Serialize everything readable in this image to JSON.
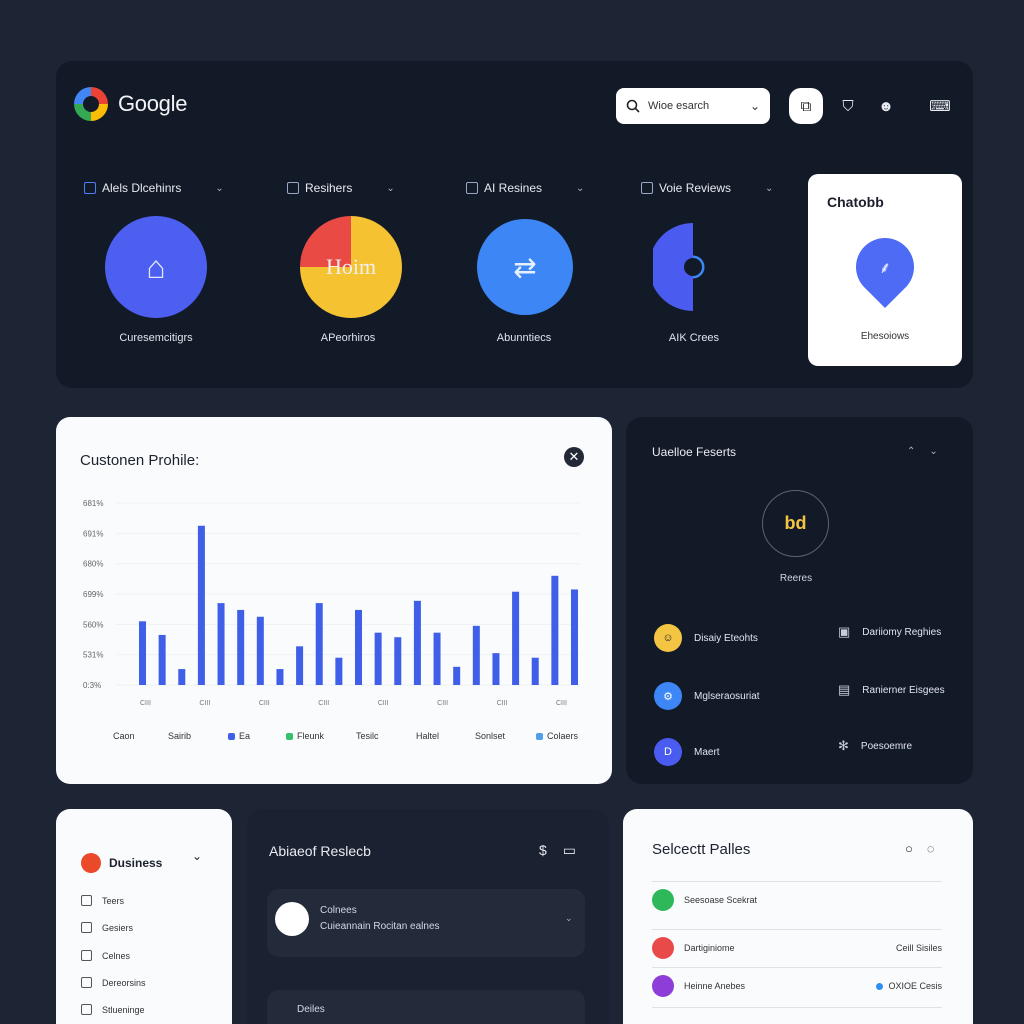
{
  "header": {
    "logo_text": "Google",
    "search_placeholder": "Wioe esarch",
    "icons": [
      "copy-icon",
      "shield-icon",
      "mask-icon",
      "inbox-icon"
    ]
  },
  "categories": [
    {
      "label": "Alels Dlcehinrs",
      "caption": "Curesemcitigrs",
      "color": "#4d5ff0",
      "glyph": "⌂"
    },
    {
      "label": "Resihers",
      "caption": "APeorhiros",
      "color": "#f5c332",
      "glyph": "Hoim"
    },
    {
      "label": "AI Resines",
      "caption": "Abunntiecs",
      "color": "#3d86f5",
      "glyph": "⇄"
    },
    {
      "label": "Voie Reviews",
      "caption": "AIK Crees",
      "color": "#4a5cf0",
      "glyph": "≯"
    }
  ],
  "chatbot": {
    "title": "Chatobb",
    "caption": "Ehesoiows"
  },
  "profile": {
    "title": "Custonen Prohile:"
  },
  "chart_data": {
    "type": "bar",
    "y_tick_labels": [
      "0:3%",
      "531%",
      "560%",
      "699%",
      "680%",
      "691%",
      "681%"
    ],
    "x_tick_labels": [
      "CIII",
      "CIII",
      "CIII",
      "CIII",
      "CIII",
      "CIII",
      "CIII",
      "CIII"
    ],
    "values": [
      28,
      22,
      7,
      70,
      36,
      33,
      30,
      7,
      17,
      36,
      12,
      33,
      23,
      21,
      37,
      23,
      8,
      26,
      14,
      41,
      12,
      48,
      42
    ],
    "legend": [
      {
        "label": "Caon",
        "color": ""
      },
      {
        "label": "Sairib",
        "color": ""
      },
      {
        "label": "Ea",
        "color": "#3f5fe8"
      },
      {
        "label": "Fleunk",
        "color": "#33c26a"
      },
      {
        "label": "Tesilc",
        "color": ""
      },
      {
        "label": "Haltel",
        "color": ""
      },
      {
        "label": "Sonlset",
        "color": ""
      },
      {
        "label": "Colaers",
        "color": "#4ea0ea"
      }
    ]
  },
  "variance": {
    "title": "Uaelloe Feserts",
    "badge": "bd",
    "badge_label": "Reeres",
    "items": [
      {
        "label": "Disaiy Eteohts",
        "color": "#f4c542",
        "glyph": "☺"
      },
      {
        "label": "Dariiomy Reghies",
        "glyph": "▣"
      },
      {
        "label": "Mglseraosuriat",
        "color": "#3d86f5",
        "glyph": "⚙"
      },
      {
        "label": "Ranierner Eisgees",
        "glyph": "▤"
      },
      {
        "label": "Maert",
        "color": "#4a5cf0",
        "glyph": "D"
      },
      {
        "label": "Poesoemre",
        "glyph": "✻"
      }
    ]
  },
  "business": {
    "title": "Dusiness",
    "items": [
      "Teers",
      "Gesiers",
      "Celnes",
      "Dereorsins",
      "Stlueninge"
    ]
  },
  "about": {
    "title": "Abiaeof Reslecb",
    "card1_line1": "Colnees",
    "card1_line2": "Cuieannain Rocitan ealnes",
    "card2_line1": "Deiles"
  },
  "selected": {
    "title": "Selcectt Palles",
    "rows": [
      {
        "label": "Seesoase Scekrat",
        "value": "",
        "color": "#2fb85a",
        "vcolor": ""
      },
      {
        "label": "Dartiginiome",
        "value": "Ceill Sisiles",
        "color": "#e84a4a",
        "vcolor": ""
      },
      {
        "label": "Heinne Anebes",
        "value": "OXIOE Cesis",
        "color": "#8e3dd8",
        "vcolor": "#2f8ff0"
      }
    ]
  }
}
